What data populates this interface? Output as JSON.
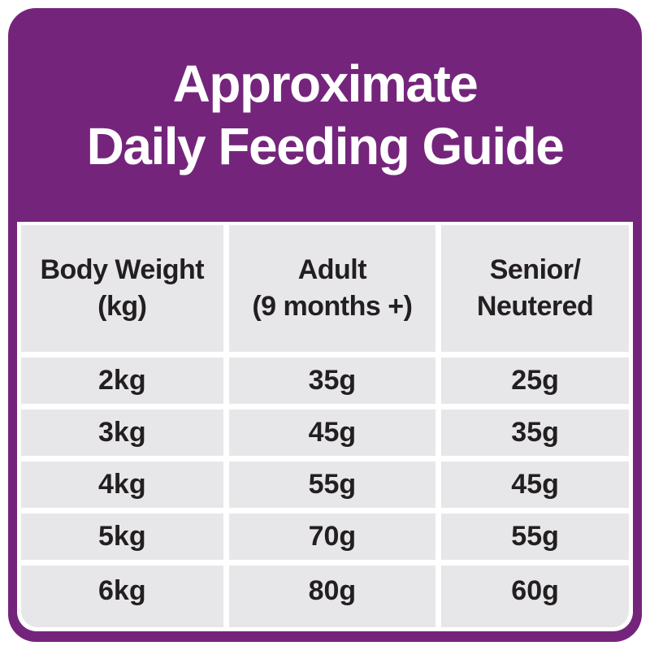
{
  "title": {
    "line1": "Approximate",
    "line2": "Daily Feeding Guide"
  },
  "table": {
    "headers": [
      "Body Weight\n(kg)",
      "Adult\n(9 months +)",
      "Senior/\nNeutered"
    ],
    "rows": [
      [
        "2kg",
        "35g",
        "25g"
      ],
      [
        "3kg",
        "45g",
        "35g"
      ],
      [
        "4kg",
        "55g",
        "45g"
      ],
      [
        "5kg",
        "70g",
        "55g"
      ],
      [
        "6kg",
        "80g",
        "60g"
      ]
    ]
  },
  "colors": {
    "purple": "#74257b",
    "cell_gray": "#e7e6e8",
    "text_dark": "#231f20",
    "title_text": "#ffffff",
    "background": "#ffffff"
  },
  "chart_data": {
    "type": "table",
    "title": "Approximate Daily Feeding Guide",
    "columns": [
      "Body Weight (kg)",
      "Adult (9 months +)",
      "Senior/Neutered"
    ],
    "rows": [
      [
        "2kg",
        "35g",
        "25g"
      ],
      [
        "3kg",
        "45g",
        "35g"
      ],
      [
        "4kg",
        "55g",
        "45g"
      ],
      [
        "5kg",
        "70g",
        "55g"
      ],
      [
        "6kg",
        "80g",
        "60g"
      ]
    ]
  }
}
